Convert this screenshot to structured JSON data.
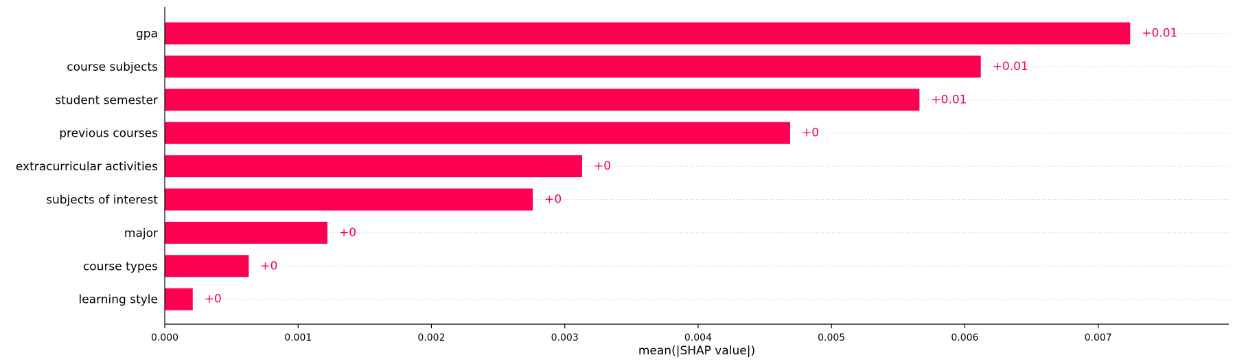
{
  "chart_data": {
    "type": "bar",
    "orientation": "horizontal",
    "categories": [
      "gpa",
      "course subjects",
      "student semester",
      "previous courses",
      "extracurricular activities",
      "subjects of interest",
      "major",
      "course types",
      "learning style"
    ],
    "values": [
      0.00724,
      0.00612,
      0.00566,
      0.00469,
      0.00313,
      0.00276,
      0.00122,
      0.00063,
      0.00021
    ],
    "data_labels": [
      "+0.01",
      "+0.01",
      "+0.01",
      "+0",
      "+0",
      "+0",
      "+0",
      "+0",
      "+0"
    ],
    "xlabel": "mean(|SHAP value|)",
    "ylabel": "",
    "title": "",
    "xlim": [
      0,
      0.00798
    ],
    "xticks": [
      0,
      0.001,
      0.002,
      0.003,
      0.004,
      0.005,
      0.006,
      0.007
    ],
    "xtick_labels": [
      "0.000",
      "0.001",
      "0.002",
      "0.003",
      "0.004",
      "0.005",
      "0.006",
      "0.007"
    ],
    "bar_color": "#ff0051",
    "grid": "dotted horizontal guide lines per bar",
    "legend": "none"
  }
}
